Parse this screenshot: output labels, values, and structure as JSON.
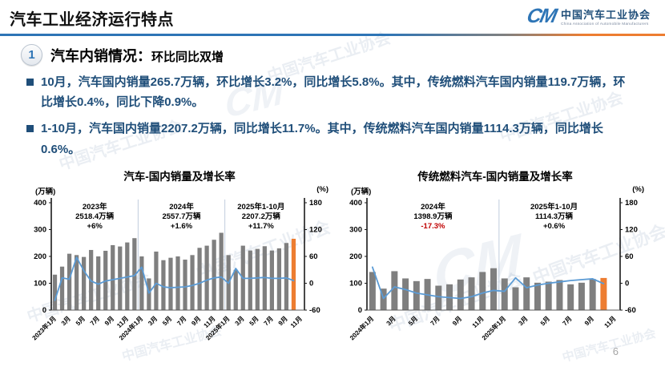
{
  "header": {
    "title": "汽车工业经济运行特点",
    "logo": {
      "mark": "CM",
      "org_cn": "中国汽车工业协会",
      "org_en": "China Association of Automobile Manufacturers"
    }
  },
  "section": {
    "number": "1",
    "title": "汽车内销情况：",
    "subtitle": "环比同比双增"
  },
  "bullets": [
    {
      "text": "10月，汽车国内销量265.7万辆，环比增长3.2%，同比增长5.8%。其中，传统燃料汽车国内销量119.7万辆，环比增长0.4%，同比下降0.9%。"
    },
    {
      "text": "1-10月，汽车国内销量2207.2万辆，同比增长11.7%。其中，传统燃料汽车国内销量1114.3万辆，同比增长0.6%。"
    }
  ],
  "watermark_text": "中国汽车工业协会",
  "page_number": "6",
  "colors": {
    "bar_gray": "#7F7F7F",
    "bar_highlight_orange": "#ED7D31",
    "line_blue": "#5B9BD5",
    "text_blue": "#1F4E79",
    "negative_red": "#C00000",
    "rule_blue": "#2E75B6"
  },
  "chart_data": [
    {
      "type": "bar+line",
      "title": "汽车-国内销量及增长率",
      "unit_left": "(万辆)",
      "unit_right": "(%)",
      "left_axis": {
        "min": 0,
        "max": 400,
        "ticks": [
          0,
          100,
          200,
          300,
          400
        ]
      },
      "right_axis": {
        "min": -60,
        "max": 180,
        "ticks": [
          -60,
          0,
          60,
          120,
          180
        ]
      },
      "x_tick_labels": [
        "2023年1月",
        "3月",
        "5月",
        "7月",
        "9月",
        "11月",
        "2024年1月",
        "3月",
        "5月",
        "7月",
        "9月",
        "11月",
        "2025年1月",
        "3月",
        "5月",
        "7月",
        "9月",
        "11月"
      ],
      "bars": {
        "name": "国内销量(万辆)",
        "color": "#7F7F7F",
        "highlight_last_color": "#ED7D31",
        "values": [
          132,
          162,
          210,
          205,
          198,
          224,
          200,
          221,
          242,
          237,
          252,
          268,
          200,
          118,
          218,
          186,
          195,
          200,
          188,
          205,
          232,
          240,
          262,
          288,
          205,
          150,
          240,
          222,
          228,
          238,
          222,
          230,
          250,
          265.7
        ]
      },
      "line": {
        "name": "同比增长率(%)",
        "color": "#5B9BD5",
        "values": [
          -38,
          12,
          9,
          58,
          28,
          5,
          -2,
          5,
          8,
          11,
          14,
          17,
          36,
          -22,
          0,
          -8,
          -10,
          -9,
          -8,
          -5,
          0,
          7,
          12,
          14,
          0,
          33,
          11,
          11,
          12,
          13,
          11,
          11,
          12,
          5.8
        ]
      },
      "dividers": [
        12,
        24
      ],
      "annotations": [
        {
          "year": "2023年",
          "total": "2518.4万辆",
          "growth": "+6%",
          "growth_color": "#000000",
          "span": [
            0,
            11
          ]
        },
        {
          "year": "2024年",
          "total": "2557.7万辆",
          "growth": "+1.6%",
          "growth_color": "#000000",
          "span": [
            12,
            23
          ]
        },
        {
          "year": "2025年1-10月",
          "total": "2207.2万辆",
          "growth": "+11.7%",
          "growth_color": "#000000",
          "span": [
            24,
            33
          ]
        }
      ]
    },
    {
      "type": "bar+line",
      "title": "传统燃料汽车-国内销量及增长率",
      "unit_left": "(万辆)",
      "unit_right": "(%)",
      "left_axis": {
        "min": 0,
        "max": 400,
        "ticks": [
          0,
          100,
          200,
          300,
          400
        ]
      },
      "right_axis": {
        "min": -60,
        "max": 180,
        "ticks": [
          -60,
          0,
          60,
          120,
          180
        ]
      },
      "x_tick_labels": [
        "2024年1月",
        "3月",
        "5月",
        "7月",
        "9月",
        "11月",
        "2025年1月",
        "3月",
        "5月",
        "7月",
        "9月",
        "11月"
      ],
      "bars": {
        "name": "国内销量(万辆)",
        "color": "#7F7F7F",
        "highlight_last_color": "#ED7D31",
        "values": [
          142,
          80,
          145,
          118,
          108,
          116,
          91,
          96,
          114,
          122,
          142,
          156,
          118,
          85,
          122,
          102,
          106,
          112,
          96,
          102,
          116,
          119.7
        ]
      },
      "line": {
        "name": "同比增长率(%)",
        "color": "#5B9BD5",
        "values": [
          36,
          -34,
          -8,
          -14,
          -22,
          -26,
          -30,
          -32,
          -34,
          -30,
          -22,
          -16,
          -18,
          12,
          -10,
          -4,
          0,
          3,
          6,
          8,
          10,
          -0.9
        ]
      },
      "dividers": [
        12
      ],
      "annotations": [
        {
          "year": "2024年",
          "total": "1398.9万辆",
          "growth": "-17.3%",
          "growth_color": "#C00000",
          "span": [
            0,
            11
          ]
        },
        {
          "year": "2025年1-10月",
          "total": "1114.3万辆",
          "growth": "+0.6%",
          "growth_color": "#000000",
          "span": [
            12,
            21
          ]
        }
      ]
    }
  ]
}
